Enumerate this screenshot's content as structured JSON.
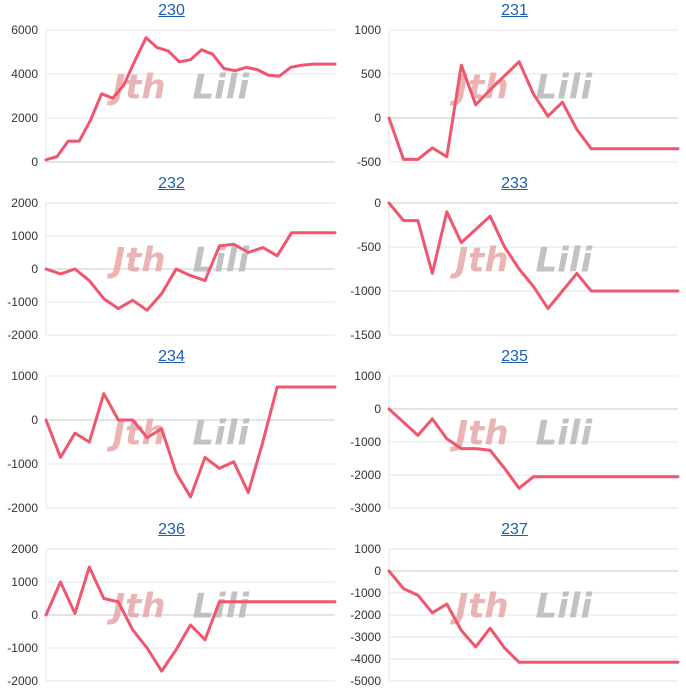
{
  "colors": {
    "line": "#f0566e",
    "grid": "#e6e6e6",
    "zero": "#c8c8c8",
    "link": "#1a5fb4"
  },
  "watermark": {
    "part1": "Jth",
    "part2": "Lili"
  },
  "chart_data": [
    {
      "type": "line",
      "title": "230",
      "ylim": [
        0,
        6000
      ],
      "yticks": [
        0,
        2000,
        4000,
        6000
      ],
      "x": [
        0,
        2,
        4,
        6,
        8,
        10,
        12,
        14,
        16,
        18,
        20,
        22,
        24,
        26,
        28,
        30,
        32,
        34,
        36,
        38,
        40,
        42,
        44,
        46,
        48,
        50,
        52,
        54,
        56,
        58,
        60
      ],
      "values": [
        100,
        250,
        950,
        950,
        1900,
        3100,
        2900,
        3500,
        4600,
        5650,
        5200,
        5050,
        4550,
        4650,
        5100,
        4900,
        4250,
        4150,
        4300,
        4200,
        3950,
        3900,
        4300,
        4400,
        4450,
        4450,
        4450,
        4450,
        4450,
        4450,
        4450
      ]
    },
    {
      "type": "line",
      "title": "231",
      "ylim": [
        -500,
        1000
      ],
      "yticks": [
        -500,
        0,
        500,
        1000
      ],
      "x": [
        0,
        2,
        4,
        6,
        8,
        10,
        12,
        14,
        16,
        18,
        20,
        22,
        24,
        26,
        28,
        30,
        32,
        34,
        36,
        38,
        40
      ],
      "values": [
        0,
        -470,
        -470,
        -340,
        -440,
        600,
        150,
        320,
        480,
        640,
        270,
        20,
        180,
        -130,
        -350,
        -350,
        -350,
        -350,
        -350,
        -350,
        -350
      ]
    },
    {
      "type": "line",
      "title": "232",
      "ylim": [
        -2000,
        2000
      ],
      "yticks": [
        -2000,
        -1000,
        0,
        1000,
        2000
      ],
      "x": [
        0,
        2,
        4,
        6,
        8,
        10,
        12,
        14,
        16,
        18,
        20,
        22,
        24,
        26,
        28,
        30,
        32,
        34,
        36,
        38,
        40
      ],
      "values": [
        0,
        -150,
        0,
        -350,
        -900,
        -1200,
        -950,
        -1250,
        -750,
        0,
        -200,
        -350,
        700,
        750,
        500,
        650,
        400,
        1100,
        1100,
        1100,
        1100
      ]
    },
    {
      "type": "line",
      "title": "233",
      "ylim": [
        -1500,
        0
      ],
      "yticks": [
        -1500,
        -1000,
        -500,
        0
      ],
      "x": [
        0,
        2,
        4,
        6,
        8,
        10,
        12,
        14,
        16,
        18,
        20,
        22,
        24,
        26,
        28,
        30,
        32,
        34,
        36,
        38,
        40
      ],
      "values": [
        0,
        -200,
        -200,
        -800,
        -100,
        -450,
        -300,
        -150,
        -500,
        -750,
        -950,
        -1200,
        -1000,
        -800,
        -1000,
        -1000,
        -1000,
        -1000,
        -1000,
        -1000,
        -1000
      ]
    },
    {
      "type": "line",
      "title": "234",
      "ylim": [
        -2000,
        1000
      ],
      "yticks": [
        -2000,
        -1000,
        0,
        1000
      ],
      "x": [
        0,
        2,
        4,
        6,
        8,
        10,
        12,
        14,
        16,
        18,
        20,
        22,
        24,
        26,
        28,
        30,
        32,
        34,
        36,
        38,
        40
      ],
      "values": [
        0,
        -850,
        -300,
        -500,
        600,
        0,
        0,
        -400,
        -200,
        -1200,
        -1750,
        -850,
        -1100,
        -950,
        -1650,
        -500,
        750,
        750,
        750,
        750,
        750
      ]
    },
    {
      "type": "line",
      "title": "235",
      "ylim": [
        -3000,
        1000
      ],
      "yticks": [
        -3000,
        -2000,
        -1000,
        0,
        1000
      ],
      "x": [
        0,
        2,
        4,
        6,
        8,
        10,
        12,
        14,
        16,
        18,
        20,
        22,
        24,
        26,
        28,
        30,
        32,
        34,
        36,
        38,
        40
      ],
      "values": [
        0,
        -400,
        -800,
        -300,
        -900,
        -1200,
        -1200,
        -1250,
        -1800,
        -2400,
        -2050,
        -2050,
        -2050,
        -2050,
        -2050,
        -2050,
        -2050,
        -2050,
        -2050,
        -2050,
        -2050
      ]
    },
    {
      "type": "line",
      "title": "236",
      "ylim": [
        -2000,
        2000
      ],
      "yticks": [
        -2000,
        -1000,
        0,
        1000,
        2000
      ],
      "x": [
        0,
        2,
        4,
        6,
        8,
        10,
        12,
        14,
        16,
        18,
        20,
        22,
        24,
        26,
        28,
        30,
        32,
        34,
        36,
        38,
        40
      ],
      "values": [
        0,
        1000,
        50,
        1450,
        500,
        400,
        -450,
        -1000,
        -1700,
        -1050,
        -300,
        -750,
        400,
        400,
        400,
        400,
        400,
        400,
        400,
        400,
        400
      ]
    },
    {
      "type": "line",
      "title": "237",
      "ylim": [
        -5000,
        1000
      ],
      "yticks": [
        -5000,
        -4000,
        -3000,
        -2000,
        -1000,
        0,
        1000
      ],
      "x": [
        0,
        2,
        4,
        6,
        8,
        10,
        12,
        14,
        16,
        18,
        20,
        22,
        24,
        26,
        28,
        30,
        32,
        34,
        36,
        38,
        40
      ],
      "values": [
        0,
        -800,
        -1100,
        -1900,
        -1500,
        -2700,
        -3450,
        -2600,
        -3500,
        -4150,
        -4150,
        -4150,
        -4150,
        -4150,
        -4150,
        -4150,
        -4150,
        -4150,
        -4150,
        -4150,
        -4150
      ]
    }
  ]
}
